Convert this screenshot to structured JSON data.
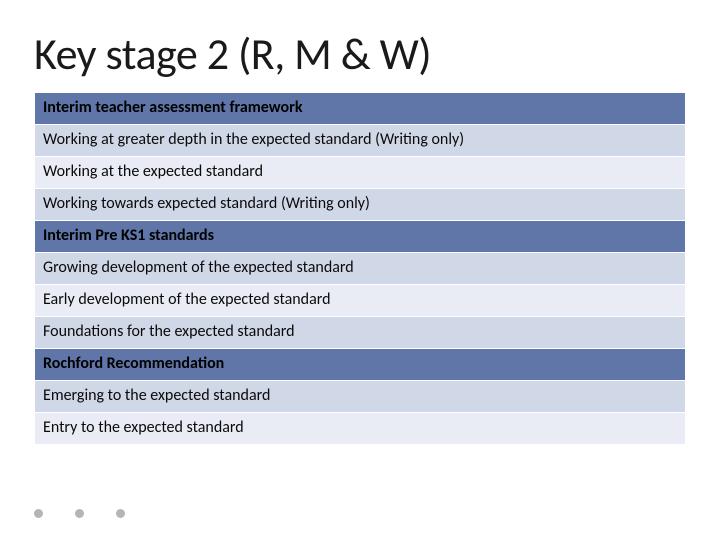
{
  "title": "Key stage 2 (R, M & W)",
  "colors": {
    "header_bg": "#6076a9",
    "row_odd_bg": "#d0d7e6",
    "row_even_bg": "#e9ecf4",
    "border": "#ffffff",
    "text": "#0a0a0a",
    "dot": "#b5b5b5"
  },
  "typography": {
    "title_fontsize": 44,
    "row_fontsize": 16,
    "header_fontweight": 700
  },
  "table": {
    "rows": [
      {
        "text": "Interim teacher assessment framework",
        "type": "header"
      },
      {
        "text": "Working at greater depth in the expected standard  (Writing  only)",
        "type": "odd"
      },
      {
        "text": "Working at the expected standard",
        "type": "even"
      },
      {
        "text": "Working towards expected standard (Writing only)",
        "type": "odd"
      },
      {
        "text": "Interim Pre KS1 standards",
        "type": "header"
      },
      {
        "text": "Growing  development of the expected standard",
        "type": "odd"
      },
      {
        "text": "Early development of the expected standard",
        "type": "even"
      },
      {
        "text": "Foundations for the expected standard",
        "type": "odd"
      },
      {
        "text": "Rochford  Recommendation",
        "type": "header"
      },
      {
        "text": "Emerging to the expected standard",
        "type": "odd"
      },
      {
        "text": "Entry to the expected standard",
        "type": "even"
      }
    ]
  }
}
